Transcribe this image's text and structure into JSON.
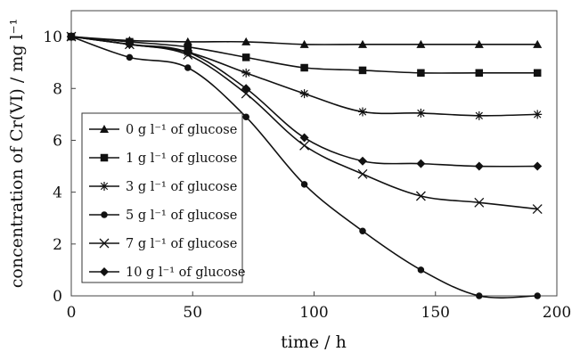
{
  "chart_data": {
    "type": "line",
    "title": "",
    "xlabel": "time / h",
    "ylabel": "concentration of Cr(VI) / mg l⁻¹",
    "xlim": [
      0,
      200
    ],
    "ylim": [
      0,
      11
    ],
    "xticks": [
      0,
      50,
      100,
      150,
      200
    ],
    "yticks": [
      0,
      2,
      4,
      6,
      8,
      10
    ],
    "grid": false,
    "legend_position": "left-middle",
    "x": [
      0,
      24,
      48,
      72,
      96,
      120,
      144,
      168,
      192
    ],
    "series": [
      {
        "name": "0 g l⁻¹ of glucose",
        "marker": "triangle",
        "values": [
          10,
          9.85,
          9.8,
          9.8,
          9.7,
          9.7,
          9.7,
          9.7,
          9.7
        ]
      },
      {
        "name": "1 g l⁻¹ of glucose",
        "marker": "square",
        "values": [
          10,
          9.8,
          9.6,
          9.2,
          8.8,
          8.7,
          8.6,
          8.6,
          8.6
        ]
      },
      {
        "name": "3 g l⁻¹ of glucose",
        "marker": "asterisk",
        "values": [
          10,
          9.7,
          9.4,
          8.6,
          7.8,
          7.1,
          7.05,
          6.95,
          7.0
        ]
      },
      {
        "name": "5 g l⁻¹ of glucose",
        "marker": "circle",
        "values": [
          10,
          9.2,
          8.8,
          6.9,
          4.3,
          2.5,
          1.0,
          0.0,
          0.0
        ]
      },
      {
        "name": "7 g l⁻¹ of glucose",
        "marker": "x",
        "values": [
          10,
          9.7,
          9.3,
          7.8,
          5.8,
          4.7,
          3.85,
          3.6,
          3.35
        ]
      },
      {
        "name": "10 g l⁻¹ of glucose",
        "marker": "diamond",
        "values": [
          10,
          9.7,
          9.4,
          8.0,
          6.1,
          5.2,
          5.1,
          5.0,
          5.0
        ]
      }
    ]
  }
}
